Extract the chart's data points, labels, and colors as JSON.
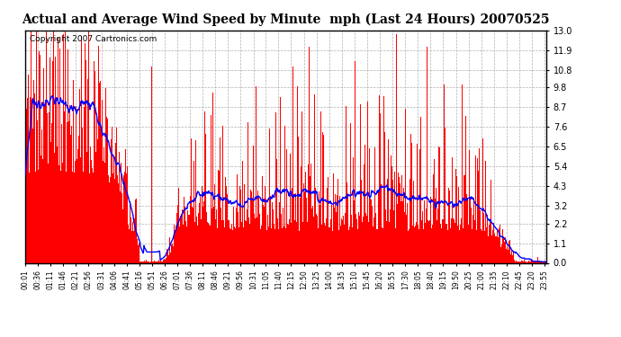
{
  "title": "Actual and Average Wind Speed by Minute  mph (Last 24 Hours) 20070525",
  "copyright": "Copyright 2007 Cartronics.com",
  "yticks": [
    0.0,
    1.1,
    2.2,
    3.2,
    4.3,
    5.4,
    6.5,
    7.6,
    8.7,
    9.8,
    10.8,
    11.9,
    13.0
  ],
  "ymin": 0.0,
  "ymax": 13.0,
  "bar_color": "#ff0000",
  "line_color": "#0000ff",
  "bg_color": "#ffffff",
  "grid_color": "#b0b0b0",
  "title_fontsize": 10,
  "copyright_fontsize": 6.5,
  "x_tick_labels": [
    "00:01",
    "00:36",
    "01:11",
    "01:46",
    "02:21",
    "02:56",
    "03:31",
    "04:06",
    "04:41",
    "05:16",
    "05:51",
    "06:26",
    "07:01",
    "07:36",
    "08:11",
    "08:46",
    "09:21",
    "09:56",
    "10:31",
    "11:05",
    "11:40",
    "12:15",
    "12:50",
    "13:25",
    "14:00",
    "14:35",
    "15:10",
    "15:45",
    "16:20",
    "16:55",
    "17:30",
    "18:05",
    "18:40",
    "19:15",
    "19:50",
    "20:25",
    "21:00",
    "21:35",
    "22:10",
    "22:45",
    "23:20",
    "23:55"
  ]
}
